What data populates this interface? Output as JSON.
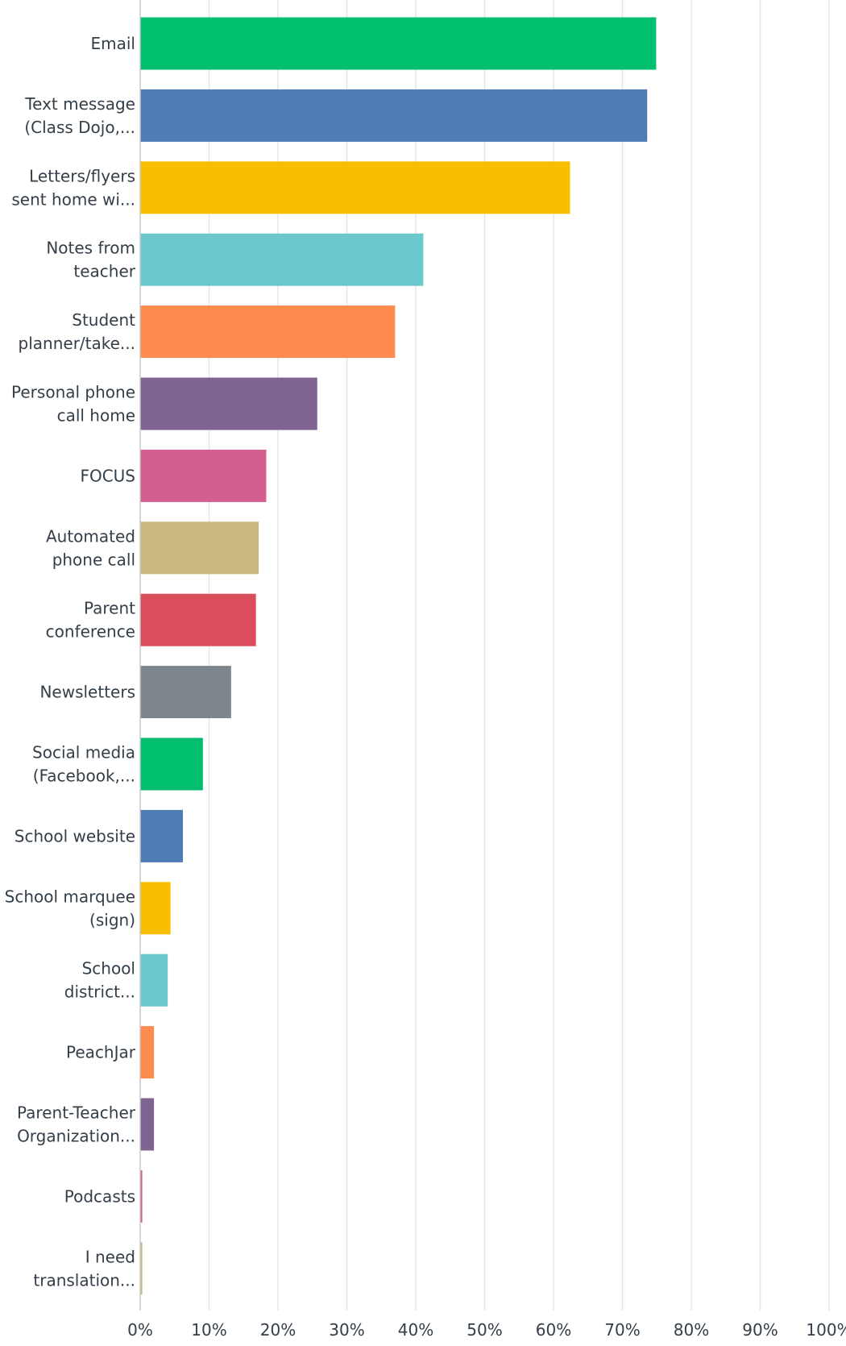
{
  "chart_data": {
    "type": "bar",
    "orientation": "horizontal",
    "title": "",
    "xlabel": "",
    "ylabel": "",
    "xlim": [
      0,
      100
    ],
    "grid": true,
    "categories": [
      [
        "Email"
      ],
      [
        "Text message",
        "(Class Dojo,..."
      ],
      [
        "Letters/flyers",
        "sent home wi..."
      ],
      [
        "Notes from",
        "teacher"
      ],
      [
        "Student",
        "planner/take..."
      ],
      [
        "Personal phone",
        "call home"
      ],
      [
        "FOCUS"
      ],
      [
        "Automated",
        "phone call"
      ],
      [
        "Parent",
        "conference"
      ],
      [
        "Newsletters"
      ],
      [
        "Social media",
        "(Facebook,..."
      ],
      [
        "School website"
      ],
      [
        "School marquee",
        "(sign)"
      ],
      [
        "School",
        "district..."
      ],
      [
        "PeachJar"
      ],
      [
        "Parent-Teacher",
        "Organization..."
      ],
      [
        "Podcasts"
      ],
      [
        "I need",
        "translation..."
      ]
    ],
    "values": [
      74.9,
      73.6,
      62.4,
      41.1,
      37.0,
      25.7,
      18.3,
      17.2,
      16.8,
      13.2,
      9.1,
      6.2,
      4.4,
      4.0,
      2.0,
      2.0,
      0.3,
      0.3
    ],
    "colors": [
      "#00bf6f",
      "#507cb6",
      "#f9be00",
      "#6bc8cd",
      "#ff8b4f",
      "#7f6391",
      "#d25f90",
      "#c9b97e",
      "#db4d5c",
      "#7d868c",
      "#00bf6f",
      "#507cb6",
      "#f9be00",
      "#6bc8cd",
      "#ff8b4f",
      "#7f6391",
      "#d25f90",
      "#c9b97e"
    ],
    "ticks": [
      "0%",
      "10%",
      "20%",
      "30%",
      "40%",
      "50%",
      "60%",
      "70%",
      "80%",
      "90%",
      "100%"
    ]
  }
}
